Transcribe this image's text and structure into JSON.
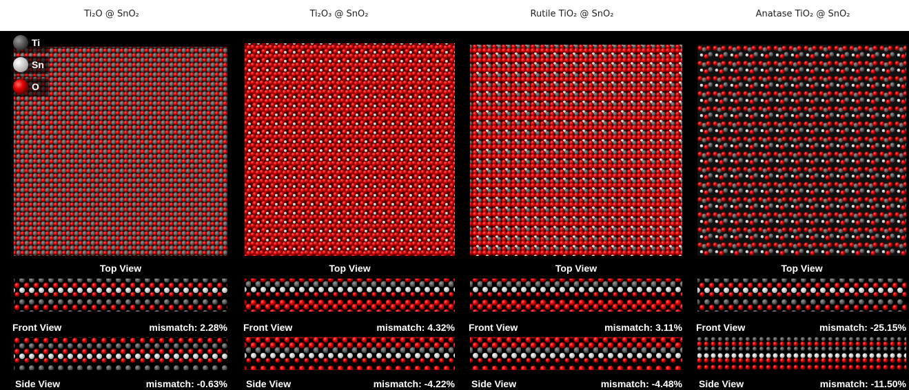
{
  "legend": [
    "Ti",
    "Sn",
    "O"
  ],
  "panels": [
    {
      "title": "Ti₂O @ SnO₂",
      "top_label": "Top View",
      "front_label": "Front View",
      "front_mismatch": "mismatch: 2.28%",
      "side_label": "Side View",
      "side_mismatch": "mismatch: -0.63%"
    },
    {
      "title": "Ti₂O₃ @ SnO₂",
      "top_label": "Top View",
      "front_label": "Front View",
      "front_mismatch": "mismatch: 4.32%",
      "side_label": "Side View",
      "side_mismatch": "mismatch: -4.22%"
    },
    {
      "title": "Rutile TiO₂ @ SnO₂",
      "top_label": "Top View",
      "front_label": "Front View",
      "front_mismatch": "mismatch: 3.11%",
      "side_label": "Side View",
      "side_mismatch": "mismatch: -4.48%"
    },
    {
      "title": "Anatase TiO₂ @ SnO₂",
      "top_label": "Top View",
      "front_label": "Front View",
      "front_mismatch": "mismatch: -25.15%",
      "side_label": "Side View",
      "side_mismatch": "mismatch: -11.50%"
    }
  ]
}
